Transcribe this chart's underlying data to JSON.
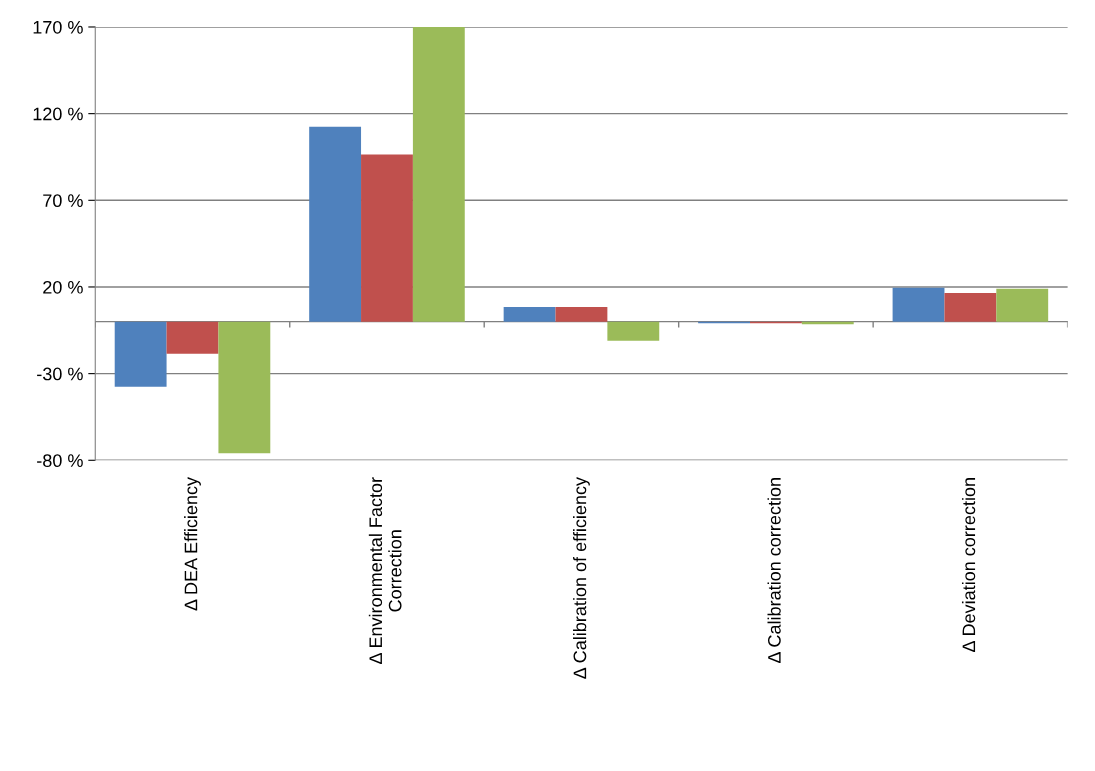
{
  "chart_data": {
    "type": "bar",
    "categories": [
      "Δ DEA Efficiency",
      "Δ Environmental Factor\nCorrection",
      "Δ Calibration of efficiency",
      "Δ Calibration correction",
      "Δ Deviation correction"
    ],
    "series": [
      {
        "color": "#4f81bd",
        "values": [
          -37.5,
          112.5,
          8.5,
          -1,
          19.5
        ]
      },
      {
        "color": "#c0504d",
        "values": [
          -18.5,
          96.5,
          8.5,
          -1,
          16.5
        ]
      },
      {
        "color": "#9bbb59",
        "values": [
          -76,
          170,
          -11,
          -1.5,
          19
        ]
      }
    ],
    "ylim": [
      -80,
      170
    ],
    "yticks": [
      {
        "value": -80,
        "label": "-80 %"
      },
      {
        "value": -30,
        "label": "-30 %"
      },
      {
        "value": 20,
        "label": "20 %"
      },
      {
        "value": 70,
        "label": "70 %"
      },
      {
        "value": 120,
        "label": "120 %"
      },
      {
        "value": 170,
        "label": "170 %"
      }
    ],
    "grid": "y"
  }
}
